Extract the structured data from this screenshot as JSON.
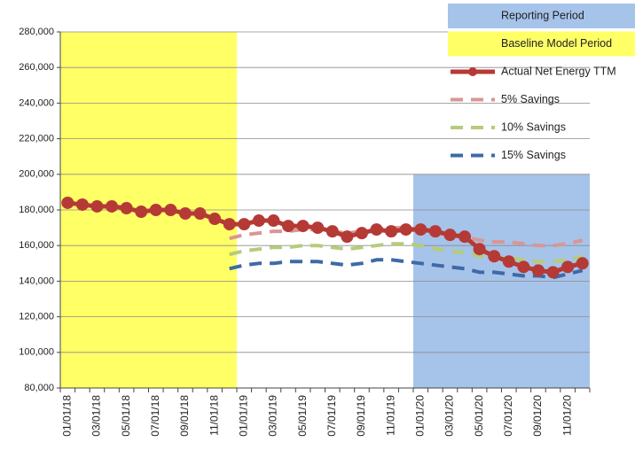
{
  "chart_data": {
    "type": "line",
    "categories": [
      "01/01/18",
      null,
      "03/01/18",
      null,
      "05/01/18",
      null,
      "07/01/18",
      null,
      "09/01/18",
      null,
      "11/01/18",
      null,
      "01/01/19",
      null,
      "03/01/19",
      null,
      "05/01/19",
      null,
      "07/01/19",
      null,
      "09/01/19",
      null,
      "11/01/19",
      null,
      "01/01/20",
      null,
      "03/01/20",
      null,
      "05/01/20",
      null,
      "07/01/20",
      null,
      "09/01/20",
      null,
      "11/01/20",
      null
    ],
    "regions": [
      {
        "name": "Reporting Period",
        "color": "#a6c3ea",
        "from": 24,
        "to": 35,
        "top": 200000
      },
      {
        "name": "Baseline Model Period",
        "color": "#ffff66",
        "from": 0,
        "to": 11,
        "top": 280000
      }
    ],
    "series": [
      {
        "name": "Actual Net Energy TTM",
        "color": "#b53a36",
        "style": "markers",
        "values": [
          184000,
          183000,
          182000,
          182000,
          181000,
          179000,
          180000,
          180000,
          178000,
          178000,
          175000,
          172000,
          172000,
          174000,
          174000,
          171000,
          171000,
          170000,
          168000,
          165000,
          167000,
          169000,
          168000,
          169000,
          169000,
          168000,
          166000,
          165000,
          158000,
          154000,
          151000,
          148000,
          146000,
          145000,
          148000,
          150000
        ]
      },
      {
        "name": "5% Savings",
        "color": "#d99694",
        "style": "dashed",
        "values": [
          null,
          null,
          null,
          null,
          null,
          null,
          null,
          null,
          null,
          null,
          null,
          164000,
          166000,
          167000,
          168000,
          168000,
          169000,
          169000,
          168000,
          167000,
          168000,
          169000,
          170000,
          170000,
          169000,
          167000,
          166000,
          165000,
          163000,
          162000,
          162000,
          161000,
          160000,
          160000,
          161000,
          163000
        ]
      },
      {
        "name": "10% Savings",
        "color": "#b5cc7a",
        "style": "dashed",
        "values": [
          null,
          null,
          null,
          null,
          null,
          null,
          null,
          null,
          null,
          null,
          null,
          155000,
          157000,
          158000,
          159000,
          159000,
          160000,
          160000,
          159000,
          158000,
          159000,
          160000,
          161000,
          161000,
          160000,
          158000,
          157000,
          156000,
          154000,
          153000,
          153000,
          152000,
          151000,
          151000,
          152000,
          154000
        ]
      },
      {
        "name": "15% Savings",
        "color": "#3e6aa6",
        "style": "dashed",
        "values": [
          null,
          null,
          null,
          null,
          null,
          null,
          null,
          null,
          null,
          null,
          null,
          147000,
          149000,
          150000,
          150000,
          151000,
          151000,
          151000,
          150000,
          149000,
          150000,
          152000,
          152000,
          151000,
          150000,
          149000,
          148000,
          147000,
          145000,
          145000,
          144000,
          143000,
          143000,
          142000,
          144000,
          146000
        ]
      }
    ],
    "ylim": [
      80000,
      280000
    ],
    "yticks": [
      {
        "value": 80000,
        "label": "80,000"
      },
      {
        "value": 100000,
        "label": "100,000"
      },
      {
        "value": 120000,
        "label": "120,000"
      },
      {
        "value": 140000,
        "label": "140,000"
      },
      {
        "value": 160000,
        "label": "160,000"
      },
      {
        "value": 180000,
        "label": "180,000"
      },
      {
        "value": 200000,
        "label": "200,000"
      },
      {
        "value": 220000,
        "label": "220,000"
      },
      {
        "value": 240000,
        "label": "240,000"
      },
      {
        "value": 260000,
        "label": "260,000"
      },
      {
        "value": 280000,
        "label": "280,000"
      }
    ],
    "grid": true
  }
}
